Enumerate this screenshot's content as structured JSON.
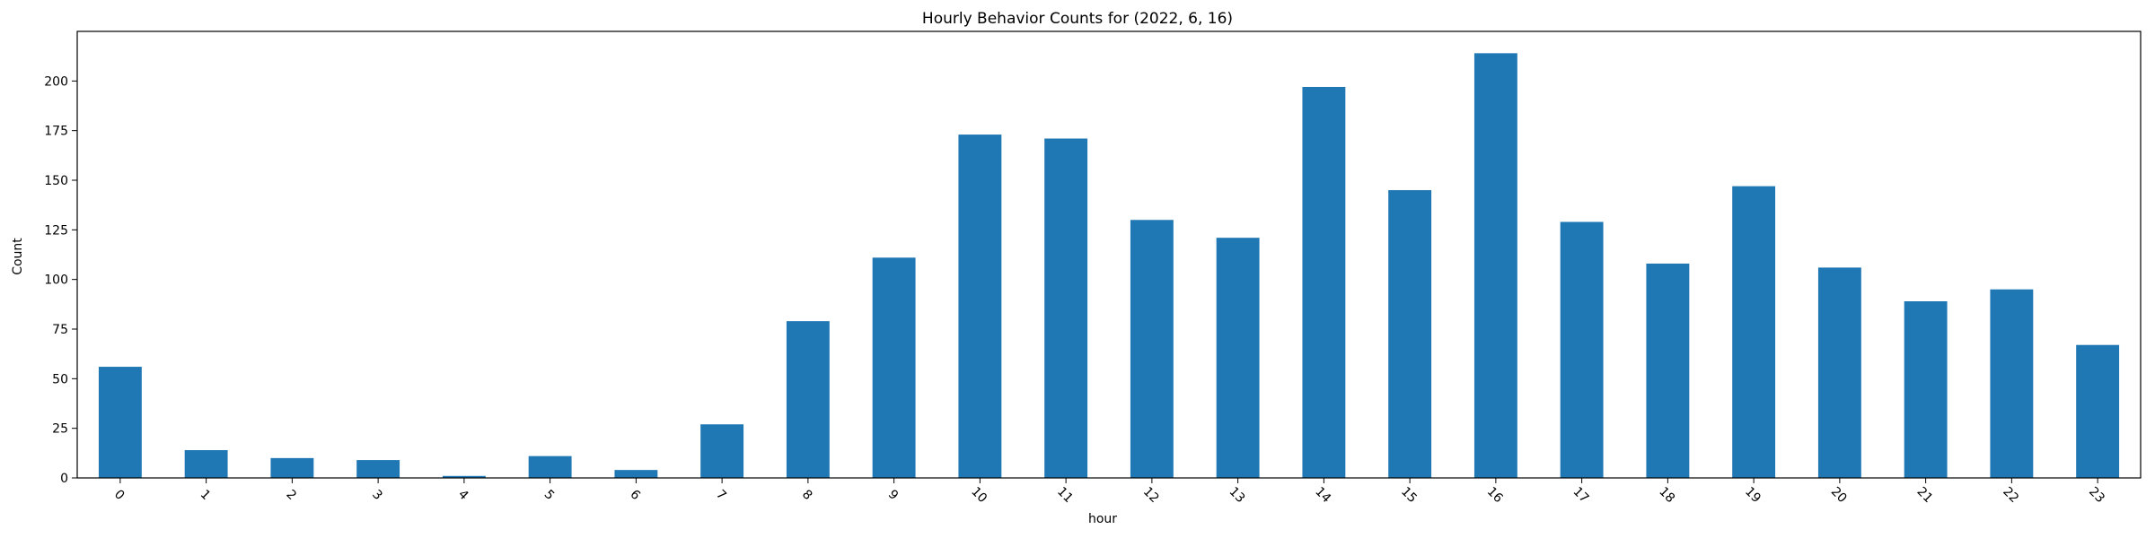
{
  "chart_data": {
    "type": "bar",
    "title": "Hourly Behavior Counts for (2022, 6, 16)",
    "xlabel": "hour",
    "ylabel": "Count",
    "categories": [
      "0",
      "1",
      "2",
      "3",
      "4",
      "5",
      "6",
      "7",
      "8",
      "9",
      "10",
      "11",
      "12",
      "13",
      "14",
      "15",
      "16",
      "17",
      "18",
      "19",
      "20",
      "21",
      "22",
      "23"
    ],
    "values": [
      56,
      14,
      10,
      9,
      1,
      11,
      4,
      27,
      79,
      111,
      173,
      171,
      130,
      121,
      197,
      145,
      214,
      129,
      108,
      147,
      106,
      89,
      95,
      67
    ],
    "ylim": [
      0,
      225
    ],
    "yticks": [
      0,
      25,
      50,
      75,
      100,
      125,
      150,
      175,
      200
    ],
    "grid": false,
    "colors": {
      "bar": "#1f77b4"
    }
  }
}
